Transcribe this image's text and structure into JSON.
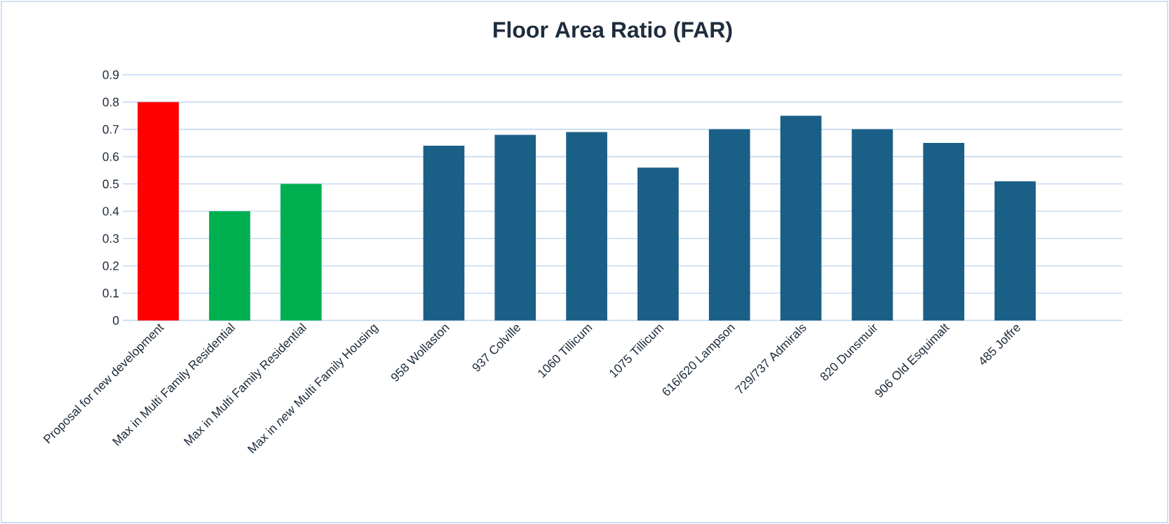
{
  "chart_data": {
    "type": "bar",
    "title": "Floor Area Ratio (FAR)",
    "categories": [
      "Proposal for new development",
      "Max in Multi Family Residential",
      "Max in Multi Family Residential",
      "Max in *new* Multi Family Housing",
      "958 Wollaston",
      "937 Colville",
      "1060 Tillicum",
      "1075 Tillicum",
      "616/620 Lampson",
      "729/737 Admirals",
      "820 Dunsmuir",
      "906 Old Esquimalt",
      "485 Joffre",
      null
    ],
    "values": [
      0.8,
      0.4,
      0.5,
      null,
      0.64,
      0.68,
      0.69,
      0.56,
      0.7,
      0.75,
      0.7,
      0.65,
      0.51,
      null
    ],
    "colors": [
      "#ff0000",
      "#00b050",
      "#00b050",
      null,
      "#1a5f86",
      "#1a5f86",
      "#1a5f86",
      "#1a5f86",
      "#1a5f86",
      "#1a5f86",
      "#1a5f86",
      "#1a5f86",
      "#1a5f86",
      null
    ],
    "ylim": [
      0,
      0.9
    ],
    "yticks": [
      0,
      0.1,
      0.2,
      0.3,
      0.4,
      0.5,
      0.6,
      0.7,
      0.8,
      0.9
    ],
    "grid": "y"
  }
}
